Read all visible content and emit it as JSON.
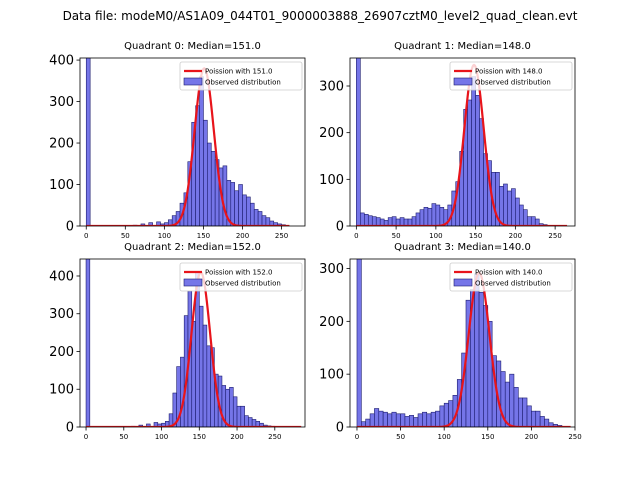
{
  "figure": {
    "title": "Data file: modeM0/AS1A09_044T01_9000003888_26907cztM0_level2_quad_clean.evt"
  },
  "colors": {
    "bar_fill": "#7575e8",
    "bar_edge": "#1c1c6e",
    "curve": "#e8141b"
  },
  "chart_data": [
    {
      "type": "bar",
      "title": "Quadrant 0: Median=151.0",
      "xlabel": "",
      "ylabel": "",
      "xlim": [
        -8,
        280
      ],
      "ylim": [
        0,
        405
      ],
      "xticks": [
        "0",
        "50",
        "100",
        "150",
        "200",
        "250"
      ],
      "yticks": [
        "0",
        "100",
        "200",
        "300",
        "400"
      ],
      "bin_width": 5,
      "observed": {
        "name": "Observed distribution",
        "bins": [
          [
            0,
            1100
          ],
          [
            60,
            2
          ],
          [
            70,
            5
          ],
          [
            80,
            8
          ],
          [
            90,
            10
          ],
          [
            95,
            5
          ],
          [
            100,
            8
          ],
          [
            105,
            15
          ],
          [
            110,
            25
          ],
          [
            115,
            35
          ],
          [
            120,
            55
          ],
          [
            125,
            80
          ],
          [
            130,
            155
          ],
          [
            135,
            250
          ],
          [
            140,
            290
          ],
          [
            145,
            360
          ],
          [
            150,
            255
          ],
          [
            155,
            200
          ],
          [
            160,
            180
          ],
          [
            165,
            160
          ],
          [
            170,
            140
          ],
          [
            175,
            145
          ],
          [
            180,
            110
          ],
          [
            185,
            105
          ],
          [
            190,
            85
          ],
          [
            195,
            100
          ],
          [
            200,
            75
          ],
          [
            205,
            70
          ],
          [
            210,
            55
          ],
          [
            215,
            40
          ],
          [
            220,
            35
          ],
          [
            225,
            25
          ],
          [
            230,
            20
          ],
          [
            235,
            12
          ],
          [
            240,
            8
          ],
          [
            245,
            5
          ],
          [
            250,
            3
          ]
        ]
      },
      "model": {
        "name": "Poission with 151.0",
        "mean": 151.0,
        "peak": 380,
        "x_range": [
          0,
          260
        ]
      }
    },
    {
      "type": "bar",
      "title": "Quadrant 1: Median=148.0",
      "xlabel": "",
      "ylabel": "",
      "xlim": [
        -8,
        275
      ],
      "ylim": [
        0,
        360
      ],
      "xticks": [
        "0",
        "50",
        "100",
        "150",
        "200",
        "250"
      ],
      "yticks": [
        "0",
        "100",
        "200",
        "300"
      ],
      "bin_width": 5,
      "observed": {
        "name": "Observed distribution",
        "bins": [
          [
            0,
            1100
          ],
          [
            5,
            28
          ],
          [
            10,
            25
          ],
          [
            15,
            22
          ],
          [
            20,
            20
          ],
          [
            25,
            18
          ],
          [
            30,
            15
          ],
          [
            35,
            12
          ],
          [
            40,
            18
          ],
          [
            45,
            20
          ],
          [
            50,
            15
          ],
          [
            55,
            18
          ],
          [
            60,
            15
          ],
          [
            65,
            15
          ],
          [
            70,
            20
          ],
          [
            75,
            28
          ],
          [
            80,
            35
          ],
          [
            85,
            40
          ],
          [
            90,
            38
          ],
          [
            95,
            48
          ],
          [
            100,
            45
          ],
          [
            105,
            40
          ],
          [
            110,
            35
          ],
          [
            115,
            45
          ],
          [
            120,
            75
          ],
          [
            125,
            95
          ],
          [
            130,
            160
          ],
          [
            135,
            250
          ],
          [
            140,
            270
          ],
          [
            145,
            320
          ],
          [
            150,
            280
          ],
          [
            155,
            230
          ],
          [
            160,
            155
          ],
          [
            165,
            140
          ],
          [
            170,
            115
          ],
          [
            175,
            115
          ],
          [
            180,
            85
          ],
          [
            185,
            90
          ],
          [
            190,
            75
          ],
          [
            195,
            80
          ],
          [
            200,
            60
          ],
          [
            205,
            45
          ],
          [
            210,
            35
          ],
          [
            215,
            20
          ],
          [
            220,
            20
          ],
          [
            225,
            15
          ],
          [
            230,
            5
          ],
          [
            235,
            3
          ]
        ]
      },
      "model": {
        "name": "Poission with 148.0",
        "mean": 148.0,
        "peak": 345,
        "x_range": [
          0,
          265
        ]
      }
    },
    {
      "type": "bar",
      "title": "Quadrant 2: Median=152.0",
      "xlabel": "",
      "ylabel": "",
      "xlim": [
        -8,
        290
      ],
      "ylim": [
        0,
        445
      ],
      "xticks": [
        "0",
        "50",
        "100",
        "150",
        "200",
        "250"
      ],
      "yticks": [
        "0",
        "100",
        "200",
        "300",
        "400"
      ],
      "bin_width": 5,
      "observed": {
        "name": "Observed distribution",
        "bins": [
          [
            0,
            1100
          ],
          [
            60,
            2
          ],
          [
            70,
            5
          ],
          [
            80,
            8
          ],
          [
            90,
            12
          ],
          [
            95,
            8
          ],
          [
            100,
            10
          ],
          [
            105,
            15
          ],
          [
            110,
            35
          ],
          [
            115,
            90
          ],
          [
            120,
            160
          ],
          [
            125,
            185
          ],
          [
            130,
            295
          ],
          [
            135,
            360
          ],
          [
            140,
            280
          ],
          [
            145,
            410
          ],
          [
            150,
            320
          ],
          [
            155,
            270
          ],
          [
            160,
            215
          ],
          [
            165,
            210
          ],
          [
            170,
            140
          ],
          [
            175,
            135
          ],
          [
            180,
            110
          ],
          [
            185,
            100
          ],
          [
            190,
            105
          ],
          [
            195,
            80
          ],
          [
            200,
            55
          ],
          [
            205,
            55
          ],
          [
            210,
            30
          ],
          [
            215,
            25
          ],
          [
            220,
            20
          ],
          [
            225,
            15
          ],
          [
            230,
            10
          ],
          [
            235,
            5
          ],
          [
            240,
            3
          ],
          [
            245,
            2
          ],
          [
            250,
            1
          ]
        ]
      },
      "model": {
        "name": "Poission with 152.0",
        "mean": 152.0,
        "peak": 410,
        "x_range": [
          0,
          285
        ]
      }
    },
    {
      "type": "bar",
      "title": "Quadrant 3: Median=140.0",
      "xlabel": "",
      "ylabel": "",
      "xlim": [
        -8,
        250
      ],
      "ylim": [
        0,
        318
      ],
      "xticks": [
        "0",
        "50",
        "100",
        "150",
        "200",
        "250"
      ],
      "yticks": [
        "0",
        "100",
        "200",
        "300"
      ],
      "bin_width": 5,
      "observed": {
        "name": "Observed distribution",
        "bins": [
          [
            0,
            1100
          ],
          [
            5,
            10
          ],
          [
            10,
            15
          ],
          [
            15,
            25
          ],
          [
            20,
            35
          ],
          [
            25,
            30
          ],
          [
            30,
            28
          ],
          [
            35,
            25
          ],
          [
            40,
            28
          ],
          [
            45,
            25
          ],
          [
            50,
            25
          ],
          [
            55,
            20
          ],
          [
            60,
            22
          ],
          [
            65,
            18
          ],
          [
            70,
            25
          ],
          [
            75,
            28
          ],
          [
            80,
            25
          ],
          [
            85,
            28
          ],
          [
            90,
            30
          ],
          [
            95,
            40
          ],
          [
            100,
            45
          ],
          [
            105,
            50
          ],
          [
            110,
            60
          ],
          [
            115,
            90
          ],
          [
            120,
            140
          ],
          [
            125,
            240
          ],
          [
            130,
            260
          ],
          [
            135,
            290
          ],
          [
            140,
            255
          ],
          [
            145,
            230
          ],
          [
            150,
            200
          ],
          [
            155,
            135
          ],
          [
            160,
            125
          ],
          [
            165,
            105
          ],
          [
            170,
            85
          ],
          [
            175,
            100
          ],
          [
            180,
            75
          ],
          [
            185,
            55
          ],
          [
            190,
            55
          ],
          [
            195,
            40
          ],
          [
            200,
            30
          ],
          [
            205,
            30
          ],
          [
            210,
            20
          ],
          [
            215,
            15
          ],
          [
            220,
            8
          ],
          [
            225,
            5
          ],
          [
            230,
            3
          ]
        ]
      },
      "model": {
        "name": "Poission with 140.0",
        "mean": 140.0,
        "peak": 292,
        "x_range": [
          0,
          245
        ]
      }
    }
  ]
}
